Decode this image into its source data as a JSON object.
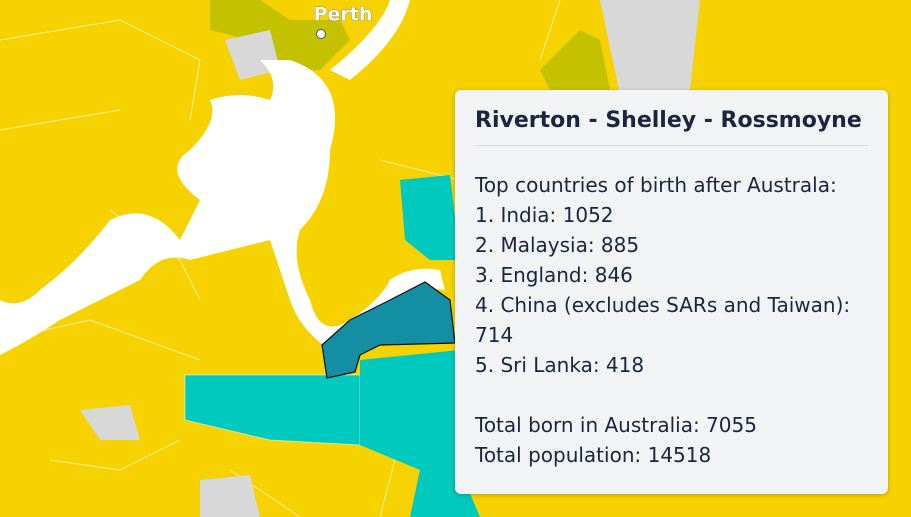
{
  "map": {
    "place_label": "Perth"
  },
  "tooltip": {
    "title": "Riverton - Shelley - Rossmoyne",
    "intro": "Top countries of birth after Australa:",
    "countries": [
      "1. India: 1052",
      "2. Malaysia: 885",
      "3. England: 846",
      "4. China (excludes SARs and Taiwan): 714",
      "5. Sri Lanka: 418"
    ],
    "totals": [
      "Total born in Australia: 7055",
      "Total population: 14518"
    ]
  }
}
